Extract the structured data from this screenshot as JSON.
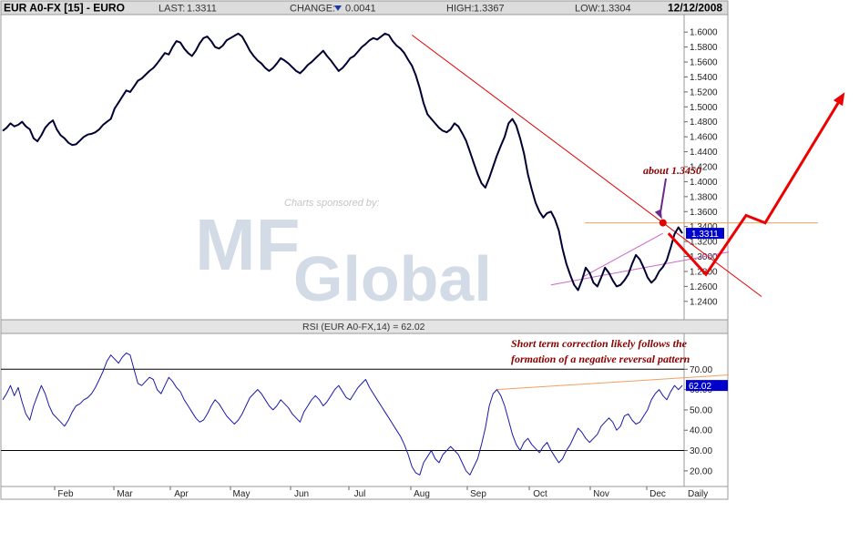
{
  "header": {
    "symbol": "EUR A0-FX [15] - EURO",
    "last_label": "LAST:",
    "last_value": "1.3311",
    "change_label": "CHANGE:",
    "change_value": "0.0041",
    "high_label": "HIGH:",
    "high_value": "1.3367",
    "low_label": "LOW:",
    "low_value": "1.3304",
    "date": "12/12/2008"
  },
  "watermark": {
    "sponsor_text": "Charts sponsored by:",
    "logo_top": "MF",
    "logo_bottom": "Global"
  },
  "rsi_label": "RSI (EUR A0-FX,14) = 62.02",
  "last_price_tag": "1.3311",
  "rsi_value_tag": "62.02",
  "annotations": {
    "about": "about 1.3450",
    "note_line1": "Short term correction likely follows the",
    "note_line2": "formation of a negative reversal pattern"
  },
  "colors": {
    "price": "#000033",
    "rsi": "#1a1aaa",
    "trendline": "#e00000",
    "support": "#f0a060",
    "wedge": "#cc66cc",
    "forecast": "#ee0000",
    "arrow": "#6a2a8a",
    "tag": "#0000cc"
  },
  "chart_data": [
    {
      "type": "line",
      "name": "price",
      "x_ticks": [
        "Feb",
        "Mar",
        "Apr",
        "May",
        "Jun",
        "Jul",
        "Aug",
        "Sep",
        "Oct",
        "Nov",
        "Dec"
      ],
      "x_period": "Daily",
      "ylim": [
        1.23,
        1.61
      ],
      "y_ticks": [
        "1.6000",
        "1.5800",
        "1.5600",
        "1.5400",
        "1.5200",
        "1.5000",
        "1.4800",
        "1.4600",
        "1.4400",
        "1.4200",
        "1.4000",
        "1.3800",
        "1.3600",
        "1.3400",
        "1.3200",
        "1.3000",
        "1.2800",
        "1.2600",
        "1.2400"
      ],
      "series_values": [
        1.468,
        1.472,
        1.478,
        1.474,
        1.476,
        1.48,
        1.474,
        1.47,
        1.458,
        1.454,
        1.462,
        1.472,
        1.478,
        1.482,
        1.47,
        1.462,
        1.458,
        1.452,
        1.449,
        1.45,
        1.455,
        1.46,
        1.463,
        1.464,
        1.466,
        1.47,
        1.476,
        1.48,
        1.484,
        1.498,
        1.506,
        1.514,
        1.522,
        1.52,
        1.527,
        1.535,
        1.538,
        1.543,
        1.548,
        1.552,
        1.558,
        1.565,
        1.572,
        1.57,
        1.58,
        1.588,
        1.586,
        1.578,
        1.572,
        1.568,
        1.575,
        1.585,
        1.592,
        1.594,
        1.588,
        1.58,
        1.578,
        1.582,
        1.589,
        1.592,
        1.595,
        1.598,
        1.594,
        1.585,
        1.575,
        1.568,
        1.562,
        1.558,
        1.552,
        1.548,
        1.552,
        1.558,
        1.565,
        1.562,
        1.558,
        1.553,
        1.548,
        1.545,
        1.55,
        1.556,
        1.56,
        1.565,
        1.57,
        1.575,
        1.568,
        1.562,
        1.555,
        1.548,
        1.552,
        1.558,
        1.565,
        1.568,
        1.574,
        1.58,
        1.584,
        1.589,
        1.592,
        1.59,
        1.594,
        1.598,
        1.596,
        1.588,
        1.582,
        1.578,
        1.572,
        1.563,
        1.555,
        1.542,
        1.525,
        1.505,
        1.49,
        1.484,
        1.478,
        1.472,
        1.468,
        1.466,
        1.47,
        1.478,
        1.474,
        1.465,
        1.455,
        1.44,
        1.425,
        1.41,
        1.398,
        1.392,
        1.405,
        1.42,
        1.435,
        1.448,
        1.46,
        1.478,
        1.484,
        1.475,
        1.458,
        1.438,
        1.41,
        1.39,
        1.372,
        1.36,
        1.352,
        1.358,
        1.36,
        1.35,
        1.335,
        1.31,
        1.29,
        1.275,
        1.262,
        1.255,
        1.268,
        1.285,
        1.278,
        1.265,
        1.26,
        1.272,
        1.285,
        1.278,
        1.268,
        1.26,
        1.262,
        1.268,
        1.276,
        1.29,
        1.302,
        1.296,
        1.285,
        1.272,
        1.265,
        1.27,
        1.28,
        1.286,
        1.295,
        1.312,
        1.33,
        1.339,
        1.331
      ],
      "trendline": [
        [
          1.596,
          1.345
        ]
      ],
      "support_level": 1.345,
      "wedge": [
        [
          1.272,
          1.331
        ],
        [
          1.262,
          1.306
        ]
      ],
      "forecast_path": [
        1.331,
        1.276,
        1.355,
        1.345,
        1.505
      ],
      "forecast_arrow_points": [
        "1.331 dropping to 1.276",
        "rising to 1.355",
        "dipping to 1.345",
        "rising toward 1.505 and beyond"
      ]
    },
    {
      "type": "line",
      "name": "RSI",
      "ylim": [
        15,
        80
      ],
      "y_ticks": [
        "70.00",
        "60.00",
        "50.00",
        "40.00",
        "30.00",
        "20.00"
      ],
      "reference_lines": [
        70,
        30
      ],
      "series_values": [
        55,
        58,
        62,
        57,
        61,
        54,
        48,
        45,
        52,
        57,
        62,
        58,
        52,
        48,
        46,
        44,
        42,
        45,
        49,
        52,
        53,
        55,
        56,
        58,
        61,
        65,
        69,
        74,
        77,
        75,
        73,
        76,
        78,
        77,
        70,
        63,
        62,
        64,
        66,
        65,
        60,
        58,
        62,
        66,
        64,
        61,
        59,
        55,
        52,
        49,
        46,
        44,
        45,
        48,
        52,
        55,
        53,
        50,
        47,
        45,
        43,
        45,
        48,
        52,
        56,
        58,
        60,
        58,
        55,
        52,
        50,
        52,
        55,
        53,
        51,
        48,
        46,
        44,
        49,
        52,
        55,
        57,
        55,
        52,
        54,
        57,
        60,
        62,
        59,
        56,
        55,
        58,
        61,
        63,
        65,
        61,
        58,
        55,
        52,
        49,
        46,
        43,
        40,
        37,
        33,
        28,
        22,
        19,
        18,
        24,
        27,
        30,
        26,
        24,
        28,
        30,
        32,
        30,
        28,
        24,
        20,
        18,
        22,
        26,
        33,
        41,
        52,
        58,
        60,
        57,
        52,
        45,
        38,
        33,
        30,
        34,
        36,
        33,
        31,
        29,
        32,
        34,
        30,
        27,
        24,
        26,
        30,
        33,
        37,
        41,
        39,
        36,
        34,
        36,
        38,
        42,
        44,
        46,
        44,
        40,
        42,
        47,
        48,
        45,
        43,
        44,
        47,
        50,
        55,
        58,
        60,
        57,
        55,
        59,
        62,
        60,
        62.02
      ]
    }
  ]
}
